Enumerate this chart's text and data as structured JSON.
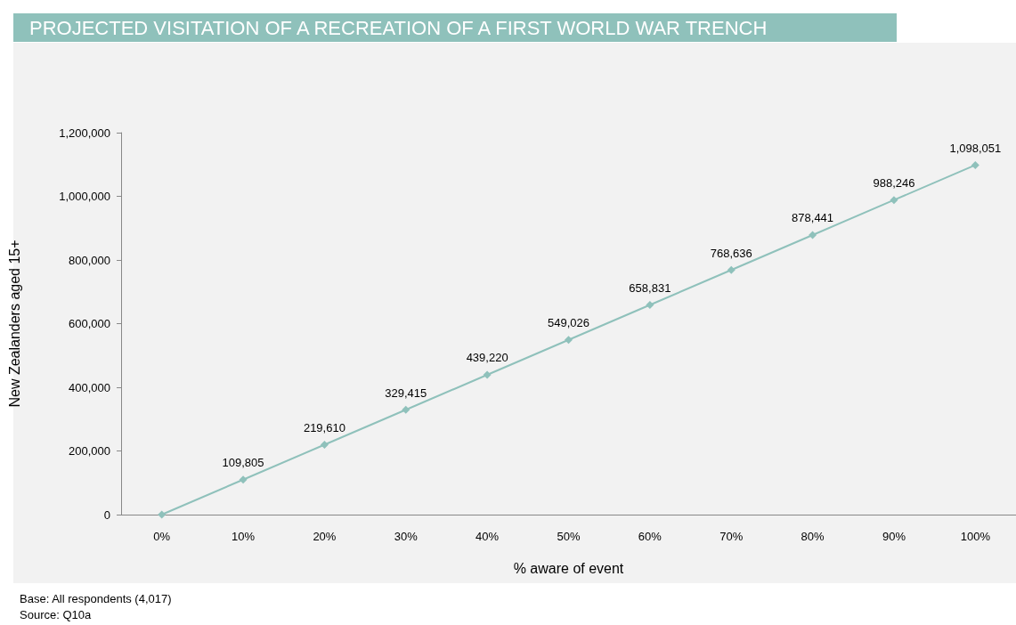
{
  "chart_data": {
    "type": "line",
    "title": "PROJECTED VISITATION OF A RECREATION OF A FIRST WORLD WAR TRENCH",
    "xlabel": "% aware of event",
    "ylabel": "New Zealanders aged 15+",
    "categories": [
      "0%",
      "10%",
      "20%",
      "30%",
      "40%",
      "50%",
      "60%",
      "70%",
      "80%",
      "90%",
      "100%"
    ],
    "series": [
      {
        "color": "#8fc1bb",
        "values": [
          0,
          109805,
          219610,
          329415,
          439220,
          549026,
          658831,
          768636,
          878441,
          988246,
          1098051
        ],
        "value_labels": [
          null,
          "109,805",
          "219,610",
          "329,415",
          "439,220",
          "549,026",
          "658,831",
          "768,636",
          "878,441",
          "988,246",
          "1,098,051"
        ]
      }
    ],
    "ylim": [
      0,
      1200000
    ],
    "yticks": [
      0,
      {
        "value": 200000,
        "label": "200,000"
      },
      {
        "value": 400000,
        "label": "400,000"
      },
      {
        "value": 600000,
        "label": "600,000"
      },
      {
        "value": 800000,
        "label": "800,000"
      },
      {
        "value": 1000000,
        "label": "1,000,000"
      },
      {
        "value": 1200000,
        "label": "1,200,000"
      }
    ],
    "grid": false,
    "marker": "diamond",
    "line_style": "solid",
    "annotations": [
      "Base: All respondents (4,017)",
      "Source: Q10a"
    ]
  }
}
